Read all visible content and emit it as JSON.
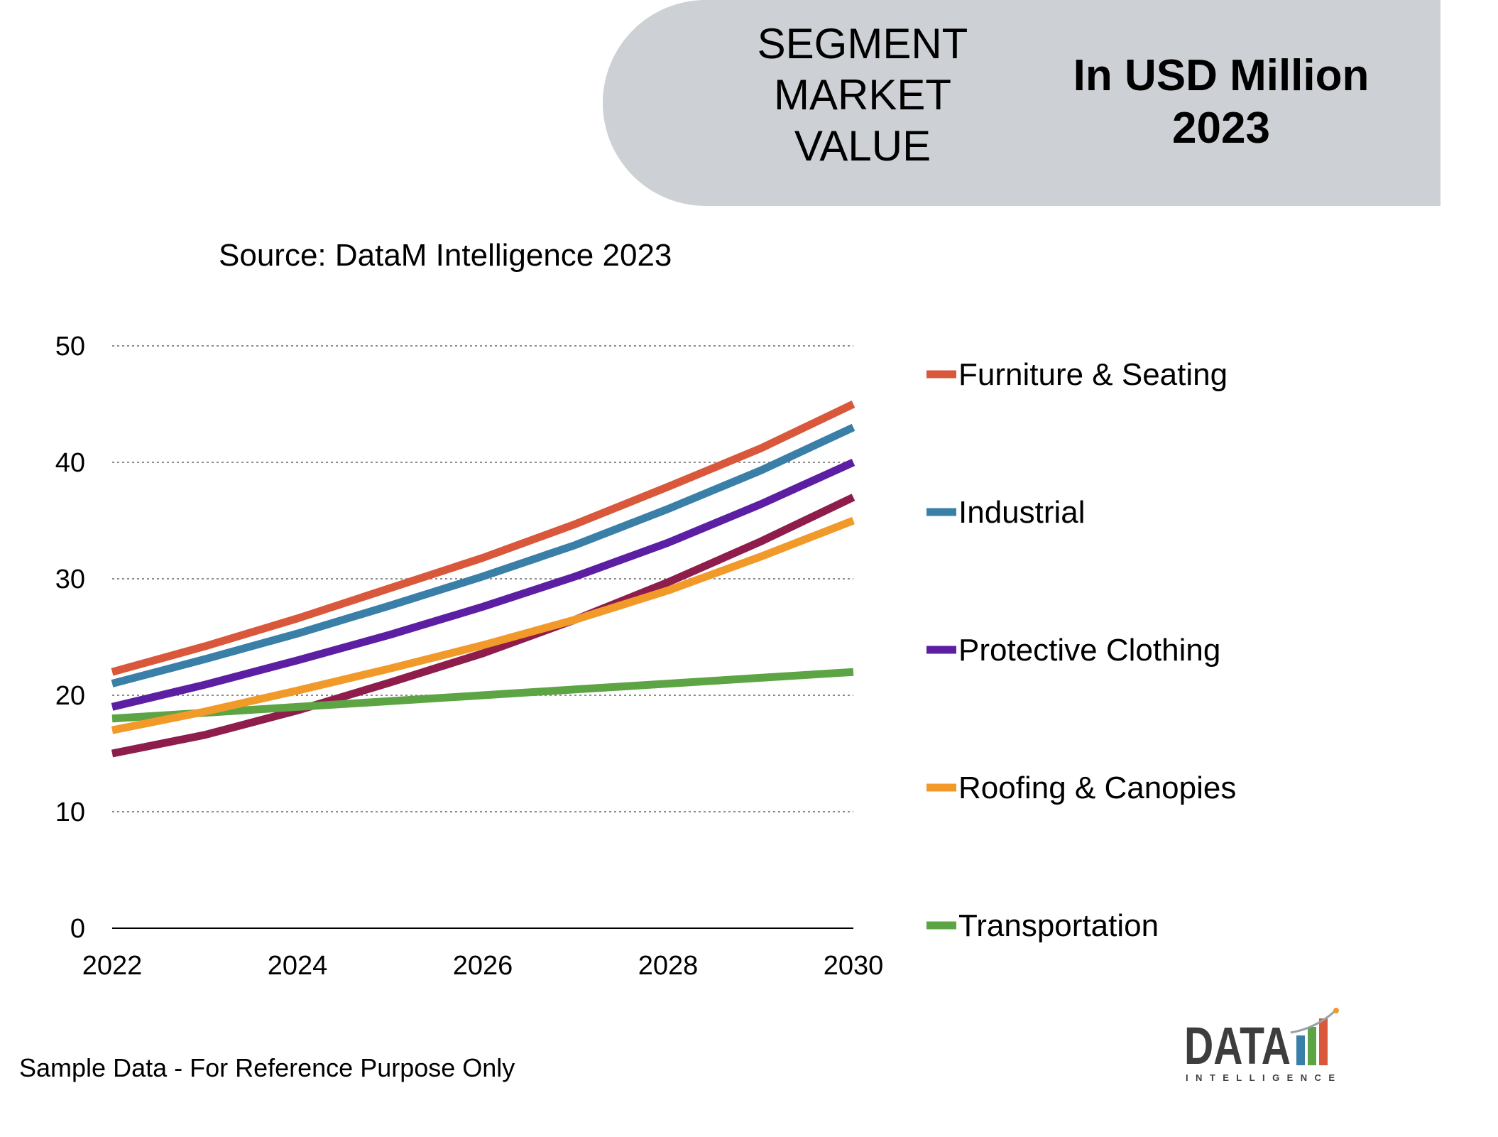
{
  "header": {
    "segment_lines": [
      "SEGMENT",
      "MARKET",
      "VALUE"
    ],
    "unit_line1": "In USD Million",
    "unit_line2": "2023"
  },
  "source": "Source: DataM Intelligence 2023",
  "footer_note": "Sample Data - For Reference Purpose Only",
  "logo": {
    "text_main": "DATA",
    "text_sub": "INTELLIGENCE"
  },
  "chart_data": {
    "type": "line",
    "title": "",
    "xlabel": "",
    "ylabel": "",
    "x_ticks": [
      "2022",
      "2024",
      "2026",
      "2028",
      "2030"
    ],
    "y_ticks": [
      "0",
      "10",
      "20",
      "30",
      "40",
      "50"
    ],
    "xlim": [
      2022,
      2030
    ],
    "ylim": [
      0,
      50
    ],
    "grid": true,
    "legend_position": "right",
    "x": [
      2022,
      2023,
      2024,
      2025,
      2026,
      2027,
      2028,
      2029,
      2030
    ],
    "series": [
      {
        "name": "Furniture & Seating",
        "color": "#d9583b",
        "values": [
          22,
          24.2,
          26.6,
          29.2,
          31.8,
          34.7,
          37.9,
          41.2,
          45
        ]
      },
      {
        "name": "Industrial",
        "color": "#3a7fa8",
        "values": [
          21,
          23.1,
          25.3,
          27.7,
          30.2,
          32.9,
          36,
          39.3,
          43
        ]
      },
      {
        "name": "Protective Clothing",
        "color": "#5c1fa3",
        "values": [
          19,
          20.9,
          23,
          25.2,
          27.6,
          30.2,
          33.1,
          36.4,
          40
        ]
      },
      {
        "name": "Roofing & Canopies",
        "color": "#f19a2a",
        "values": [
          17,
          18.6,
          20.4,
          22.3,
          24.3,
          26.5,
          29,
          31.9,
          35
        ]
      },
      {
        "name": "Transportation",
        "color": "#5ca444",
        "values": [
          18,
          18.5,
          19,
          19.5,
          20,
          20.5,
          21,
          21.5,
          22
        ]
      },
      {
        "name": "",
        "color": "#8e1d4c",
        "values": [
          15,
          16.6,
          18.7,
          21.1,
          23.6,
          26.5,
          29.7,
          33.2,
          37
        ]
      }
    ]
  }
}
